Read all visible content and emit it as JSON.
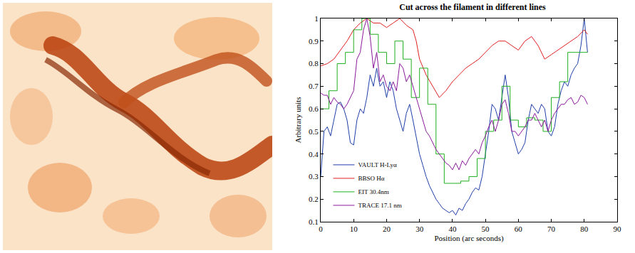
{
  "chart_data": {
    "type": "line",
    "title": "Cut across the filament in different lines",
    "x_label": "Position (arc seconds)",
    "y_label": "Arbitrary units",
    "xlim": [
      0,
      90
    ],
    "xticks": [
      0,
      10,
      20,
      30,
      40,
      50,
      60,
      70,
      80,
      90
    ],
    "ylim": [
      0.1,
      1
    ],
    "yticks": [
      0.1,
      0.2,
      0.3,
      0.4,
      0.5,
      0.6,
      0.7,
      0.8,
      0.9,
      1
    ],
    "grid": false,
    "legend": "bottom-left",
    "series": [
      {
        "name": "VAULT H-Lyα",
        "color": "#1f3fa8",
        "line_style": "solid",
        "x": [
          0,
          1,
          2,
          3,
          4,
          5,
          6,
          7,
          8,
          9,
          10,
          11,
          12,
          13,
          14,
          15,
          16,
          17,
          18,
          19,
          20,
          21,
          22,
          23,
          24,
          25,
          26,
          27,
          28,
          29,
          30,
          31,
          32,
          33,
          34,
          35,
          36,
          37,
          38,
          39,
          40,
          41,
          42,
          43,
          44,
          45,
          46,
          47,
          48,
          49,
          50,
          51,
          52,
          53,
          54,
          55,
          56,
          57,
          58,
          59,
          60,
          61,
          62,
          63,
          64,
          65,
          66,
          67,
          68,
          69,
          70,
          71,
          72,
          73,
          74,
          75,
          76,
          77,
          78,
          79,
          80,
          81
        ],
        "values": [
          0.3,
          0.5,
          0.52,
          0.48,
          0.55,
          0.62,
          0.63,
          0.6,
          0.55,
          0.45,
          0.44,
          0.55,
          0.6,
          0.58,
          0.65,
          0.75,
          0.7,
          0.78,
          0.7,
          0.72,
          0.65,
          0.72,
          0.68,
          0.6,
          0.55,
          0.5,
          0.58,
          0.62,
          0.55,
          0.48,
          0.4,
          0.35,
          0.3,
          0.26,
          0.23,
          0.2,
          0.18,
          0.16,
          0.15,
          0.14,
          0.15,
          0.13,
          0.16,
          0.15,
          0.18,
          0.2,
          0.23,
          0.25,
          0.24,
          0.3,
          0.4,
          0.5,
          0.62,
          0.6,
          0.55,
          0.65,
          0.75,
          0.65,
          0.5,
          0.45,
          0.4,
          0.42,
          0.45,
          0.55,
          0.62,
          0.6,
          0.58,
          0.62,
          0.6,
          0.5,
          0.48,
          0.52,
          0.62,
          0.68,
          0.72,
          0.7,
          0.75,
          0.78,
          0.8,
          0.88,
          1.0,
          0.85
        ]
      },
      {
        "name": "BBSO Hα",
        "color": "#e02020",
        "line_style": "solid",
        "x": [
          0,
          2,
          4,
          6,
          8,
          10,
          12,
          14,
          16,
          18,
          20,
          22,
          24,
          26,
          28,
          29,
          30,
          32,
          34,
          36,
          38,
          40,
          42,
          44,
          46,
          48,
          50,
          52,
          54,
          56,
          58,
          60,
          62,
          64,
          66,
          68,
          70,
          72,
          74,
          76,
          78,
          80,
          81
        ],
        "values": [
          0.79,
          0.8,
          0.82,
          0.86,
          0.9,
          0.95,
          0.98,
          1.0,
          0.98,
          0.98,
          0.96,
          0.98,
          1.0,
          0.97,
          0.95,
          0.9,
          0.82,
          0.75,
          0.7,
          0.65,
          0.68,
          0.72,
          0.75,
          0.78,
          0.8,
          0.82,
          0.85,
          0.88,
          0.9,
          0.9,
          0.88,
          0.86,
          0.9,
          0.92,
          0.88,
          0.82,
          0.84,
          0.86,
          0.88,
          0.9,
          0.92,
          0.95,
          0.93
        ]
      },
      {
        "name": "EIT 30.4nm",
        "color": "#20b020",
        "line_style": "step",
        "x": [
          0,
          2.5,
          5,
          7.5,
          10,
          12.5,
          15,
          17.5,
          20,
          22.5,
          25,
          27.5,
          30,
          32.5,
          35,
          37.5,
          40,
          42.5,
          45,
          47.5,
          50,
          52.5,
          55,
          57.5,
          60,
          62.5,
          65,
          67.5,
          70,
          72.5,
          75,
          77.5,
          80,
          81
        ],
        "values": [
          0.6,
          0.68,
          0.8,
          0.85,
          0.95,
          1.0,
          0.93,
          0.85,
          0.8,
          0.9,
          0.82,
          0.65,
          0.78,
          0.62,
          0.4,
          0.27,
          0.27,
          0.28,
          0.3,
          0.38,
          0.5,
          0.55,
          0.7,
          0.55,
          0.52,
          0.56,
          0.55,
          0.5,
          0.65,
          0.72,
          0.85,
          0.85,
          0.85,
          0.85
        ]
      },
      {
        "name": "TRACE 17.1 nm",
        "color": "#8a1a9a",
        "line_style": "solid",
        "x": [
          0,
          1,
          2,
          3,
          4,
          5,
          6,
          7,
          8,
          9,
          10,
          11,
          12,
          13,
          14,
          15,
          16,
          17,
          18,
          19,
          20,
          21,
          22,
          23,
          24,
          25,
          26,
          27,
          28,
          29,
          30,
          31,
          32,
          33,
          34,
          35,
          36,
          37,
          38,
          39,
          40,
          41,
          42,
          43,
          44,
          45,
          46,
          47,
          48,
          49,
          50,
          51,
          52,
          53,
          54,
          55,
          56,
          57,
          58,
          59,
          60,
          61,
          62,
          63,
          64,
          65,
          66,
          67,
          68,
          69,
          70,
          71,
          72,
          73,
          74,
          75,
          76,
          77,
          78,
          79,
          80,
          81
        ],
        "values": [
          0.67,
          0.66,
          0.66,
          0.62,
          0.65,
          0.63,
          0.62,
          0.6,
          0.62,
          0.65,
          0.68,
          0.82,
          0.85,
          0.95,
          1.0,
          0.92,
          0.78,
          0.85,
          0.72,
          0.75,
          0.7,
          0.68,
          0.72,
          0.68,
          0.8,
          0.78,
          0.72,
          0.75,
          0.7,
          0.65,
          0.6,
          0.55,
          0.5,
          0.48,
          0.45,
          0.42,
          0.4,
          0.38,
          0.36,
          0.35,
          0.33,
          0.36,
          0.33,
          0.37,
          0.35,
          0.38,
          0.4,
          0.42,
          0.4,
          0.45,
          0.48,
          0.52,
          0.55,
          0.5,
          0.55,
          0.62,
          0.64,
          0.58,
          0.5,
          0.5,
          0.48,
          0.5,
          0.52,
          0.55,
          0.55,
          0.58,
          0.55,
          0.52,
          0.55,
          0.5,
          0.55,
          0.58,
          0.6,
          0.62,
          0.62,
          0.64,
          0.65,
          0.62,
          0.63,
          0.66,
          0.65,
          0.62
        ]
      }
    ]
  }
}
